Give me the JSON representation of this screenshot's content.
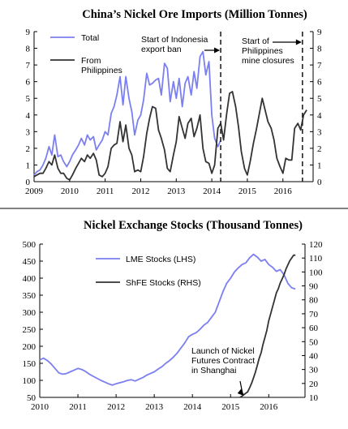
{
  "chart_data": [
    {
      "type": "line",
      "title": "China’s Nickel Ore Imports (Million Tonnes)",
      "x_ticks": [
        "2009",
        "2010",
        "2011",
        "2012",
        "2013",
        "2014",
        "2015",
        "2016"
      ],
      "y_ticks": [
        0,
        1,
        2,
        3,
        4,
        5,
        6,
        7,
        8,
        9
      ],
      "ylim": [
        0,
        9
      ],
      "xlim": [
        2009.0,
        2016.85
      ],
      "grid": false,
      "legend_position": "top-left",
      "colors": {
        "Total": "#7b7ff0",
        "From Philippines": "#333333"
      },
      "series": [
        {
          "name": "Total",
          "x": [
            2009.0,
            2009.08,
            2009.17,
            2009.25,
            2009.33,
            2009.42,
            2009.5,
            2009.58,
            2009.67,
            2009.75,
            2009.83,
            2009.92,
            2010.0,
            2010.08,
            2010.17,
            2010.25,
            2010.33,
            2010.42,
            2010.5,
            2010.58,
            2010.67,
            2010.75,
            2010.83,
            2010.92,
            2011.0,
            2011.08,
            2011.17,
            2011.25,
            2011.33,
            2011.42,
            2011.5,
            2011.58,
            2011.67,
            2011.75,
            2011.83,
            2011.92,
            2012.0,
            2012.08,
            2012.17,
            2012.25,
            2012.33,
            2012.42,
            2012.5,
            2012.58,
            2012.67,
            2012.75,
            2012.83,
            2012.92,
            2013.0,
            2013.08,
            2013.17,
            2013.25,
            2013.33,
            2013.42,
            2013.5,
            2013.58,
            2013.67,
            2013.75,
            2013.83,
            2013.92,
            2014.0,
            2014.08,
            2014.17,
            2014.25
          ],
          "values": [
            0.4,
            0.6,
            0.7,
            1.0,
            1.4,
            2.1,
            1.6,
            2.8,
            1.5,
            1.6,
            1.2,
            0.9,
            1.2,
            1.6,
            1.9,
            2.2,
            2.6,
            2.2,
            2.8,
            2.5,
            2.7,
            1.9,
            2.2,
            2.5,
            3.0,
            2.8,
            4.1,
            4.5,
            5.2,
            6.3,
            4.6,
            6.3,
            5.0,
            4.2,
            2.8,
            3.7,
            4.0,
            4.9,
            6.5,
            5.8,
            5.9,
            6.1,
            6.2,
            5.2,
            7.1,
            6.8,
            4.8,
            6.0,
            5.0,
            6.2,
            4.5,
            5.9,
            6.3,
            5.2,
            6.6,
            5.6,
            7.5,
            7.8,
            6.4,
            7.2,
            4.0,
            2.6,
            2.1,
            2.5
          ]
        },
        {
          "name": "From Philippines",
          "x": [
            2009.0,
            2009.08,
            2009.17,
            2009.25,
            2009.33,
            2009.42,
            2009.5,
            2009.58,
            2009.67,
            2009.75,
            2009.83,
            2009.92,
            2010.0,
            2010.08,
            2010.17,
            2010.25,
            2010.33,
            2010.42,
            2010.5,
            2010.58,
            2010.67,
            2010.75,
            2010.83,
            2010.92,
            2011.0,
            2011.08,
            2011.17,
            2011.25,
            2011.33,
            2011.42,
            2011.5,
            2011.58,
            2011.67,
            2011.75,
            2011.83,
            2011.92,
            2012.0,
            2012.08,
            2012.17,
            2012.25,
            2012.33,
            2012.42,
            2012.5,
            2012.58,
            2012.67,
            2012.75,
            2012.83,
            2012.92,
            2013.0,
            2013.08,
            2013.17,
            2013.25,
            2013.33,
            2013.42,
            2013.5,
            2013.58,
            2013.67,
            2013.75,
            2013.83,
            2013.92,
            2014.0,
            2014.08,
            2014.17,
            2014.25,
            2014.33,
            2014.42,
            2014.5,
            2014.58,
            2014.67,
            2014.75,
            2014.83,
            2014.92,
            2015.0,
            2015.08,
            2015.17,
            2015.25,
            2015.33,
            2015.42,
            2015.5,
            2015.58,
            2015.67,
            2015.75,
            2015.83,
            2015.92,
            2016.0,
            2016.08,
            2016.17,
            2016.25,
            2016.33,
            2016.42,
            2016.5,
            2016.58,
            2016.67
          ],
          "values": [
            0.3,
            0.4,
            0.5,
            0.5,
            0.8,
            1.2,
            1.0,
            1.6,
            0.8,
            0.5,
            0.5,
            0.2,
            0.1,
            0.4,
            0.8,
            1.1,
            1.4,
            1.2,
            1.6,
            1.4,
            1.7,
            1.3,
            0.4,
            0.3,
            0.5,
            0.9,
            2.0,
            2.2,
            2.3,
            3.6,
            2.4,
            3.4,
            2.0,
            1.6,
            0.6,
            0.7,
            0.6,
            1.5,
            2.9,
            3.8,
            4.5,
            4.4,
            3.1,
            2.6,
            1.9,
            0.8,
            0.6,
            1.6,
            2.4,
            3.9,
            3.2,
            2.6,
            3.5,
            3.8,
            2.7,
            3.2,
            4.0,
            2.0,
            1.2,
            1.1,
            0.5,
            1.0,
            3.2,
            3.5,
            2.5,
            4.1,
            5.3,
            5.4,
            4.5,
            3.3,
            1.8,
            0.8,
            0.4,
            1.2,
            2.3,
            3.1,
            4.0,
            5.0,
            4.3,
            3.6,
            3.2,
            2.5,
            1.4,
            0.9,
            0.5,
            1.4,
            1.3,
            1.3,
            3.2,
            3.5,
            3.1,
            4.0,
            4.3
          ]
        }
      ],
      "annotations": [
        {
          "x": 2014.25,
          "label_lines": [
            "Start of Indonesia",
            "export ban"
          ]
        },
        {
          "x": 2016.55,
          "label_lines": [
            "Start of",
            "Philippines",
            "mine closures"
          ]
        }
      ]
    },
    {
      "type": "line",
      "title": "Nickel Exchange Stocks (Thousand Tonnes)",
      "x_ticks": [
        "2010",
        "2011",
        "2012",
        "2013",
        "2014",
        "2015",
        "2016"
      ],
      "y_left_ticks": [
        50,
        100,
        150,
        200,
        250,
        300,
        350,
        400,
        450,
        500
      ],
      "y_right_ticks": [
        10,
        20,
        30,
        40,
        50,
        60,
        70,
        80,
        90,
        100,
        110,
        120
      ],
      "ylim_left": [
        50,
        500
      ],
      "ylim_right": [
        10,
        120
      ],
      "xlim": [
        2010.0,
        2016.95
      ],
      "grid": false,
      "legend_position": "top-left",
      "colors": {
        "LME Stocks (LHS)": "#7b7ff0",
        "ShFE Stocks (RHS)": "#333333"
      },
      "series": [
        {
          "name": "LME Stocks (LHS)",
          "axis": "left",
          "x": [
            2010.0,
            2010.1,
            2010.2,
            2010.3,
            2010.4,
            2010.5,
            2010.6,
            2010.7,
            2010.8,
            2010.9,
            2011.0,
            2011.1,
            2011.2,
            2011.3,
            2011.4,
            2011.5,
            2011.6,
            2011.7,
            2011.8,
            2011.9,
            2012.0,
            2012.1,
            2012.2,
            2012.3,
            2012.4,
            2012.5,
            2012.6,
            2012.7,
            2012.8,
            2012.9,
            2013.0,
            2013.1,
            2013.2,
            2013.3,
            2013.4,
            2013.5,
            2013.6,
            2013.7,
            2013.8,
            2013.9,
            2014.0,
            2014.1,
            2014.2,
            2014.3,
            2014.4,
            2014.5,
            2014.6,
            2014.7,
            2014.8,
            2014.9,
            2015.0,
            2015.1,
            2015.2,
            2015.3,
            2015.4,
            2015.5,
            2015.6,
            2015.7,
            2015.8,
            2015.9,
            2016.0,
            2016.1,
            2016.2,
            2016.3,
            2016.4,
            2016.5,
            2016.6,
            2016.7
          ],
          "values": [
            160,
            165,
            158,
            148,
            135,
            122,
            118,
            120,
            125,
            130,
            135,
            132,
            126,
            118,
            112,
            106,
            100,
            95,
            90,
            86,
            90,
            93,
            96,
            100,
            102,
            98,
            103,
            108,
            115,
            120,
            125,
            133,
            140,
            150,
            158,
            168,
            180,
            195,
            210,
            228,
            235,
            240,
            250,
            262,
            270,
            285,
            300,
            330,
            360,
            385,
            400,
            418,
            430,
            440,
            445,
            460,
            470,
            462,
            450,
            455,
            440,
            432,
            420,
            425,
            410,
            385,
            372,
            368
          ]
        },
        {
          "name": "ShFE Stocks (RHS)",
          "axis": "right",
          "x": [
            2015.25,
            2015.3,
            2015.35,
            2015.4,
            2015.45,
            2015.5,
            2015.55,
            2015.6,
            2015.65,
            2015.7,
            2015.75,
            2015.8,
            2015.85,
            2015.9,
            2015.95,
            2016.0,
            2016.05,
            2016.1,
            2016.15,
            2016.2,
            2016.25,
            2016.3,
            2016.35,
            2016.4,
            2016.45,
            2016.5,
            2016.55,
            2016.6,
            2016.65,
            2016.7
          ],
          "values": [
            10,
            11,
            12,
            13,
            14,
            17,
            20,
            24,
            28,
            33,
            38,
            42,
            48,
            53,
            58,
            65,
            70,
            75,
            80,
            85,
            88,
            92,
            95,
            98,
            102,
            105,
            108,
            110,
            112,
            112
          ]
        }
      ],
      "annotations": [
        {
          "x": 2015.35,
          "label_lines": [
            "Launch of Nickel",
            "Futures Contract",
            "in Shanghai"
          ]
        }
      ]
    }
  ]
}
